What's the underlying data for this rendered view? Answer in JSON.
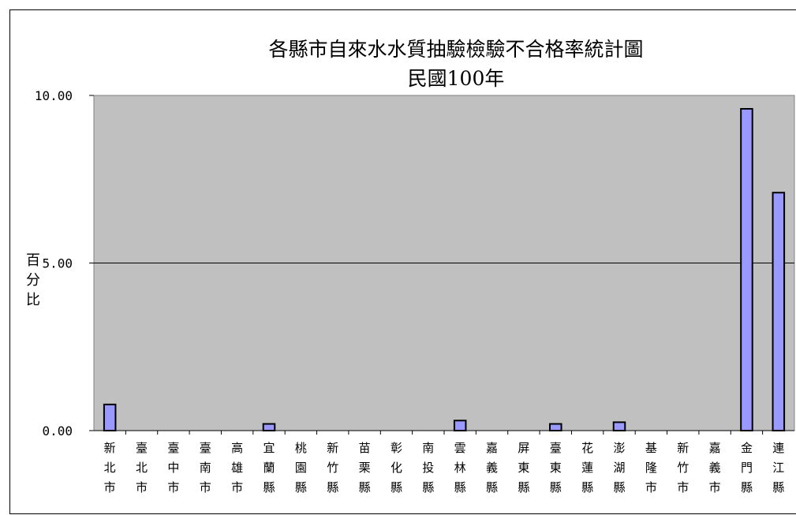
{
  "chart_data": {
    "type": "bar",
    "title": "各縣市自來水水質抽驗檢驗不合格率統計圖",
    "subtitle": "民國100年",
    "ylabel": "百分比",
    "ylim": [
      0,
      10
    ],
    "yticks": [
      "0.00",
      "5.00",
      "10.00"
    ],
    "grid": true,
    "legend": "none",
    "colors": {
      "bar": "#9999ff",
      "plot_bg": "#c0c0c0",
      "edge": "#000000"
    },
    "categories": [
      "新北市",
      "臺北市",
      "臺中市",
      "臺南市",
      "高雄市",
      "宜蘭縣",
      "桃園縣",
      "新竹縣",
      "苗栗縣",
      "彰化縣",
      "南投縣",
      "雲林縣",
      "嘉義縣",
      "屏東縣",
      "臺東縣",
      "花蓮縣",
      "澎湖縣",
      "基隆市",
      "新竹市",
      "嘉義市",
      "金門縣",
      "連江縣"
    ],
    "values": [
      0.78,
      0,
      0,
      0,
      0,
      0.2,
      0,
      0,
      0,
      0,
      0,
      0.3,
      0,
      0,
      0.2,
      0,
      0.25,
      0,
      0,
      0,
      9.6,
      7.1
    ]
  }
}
